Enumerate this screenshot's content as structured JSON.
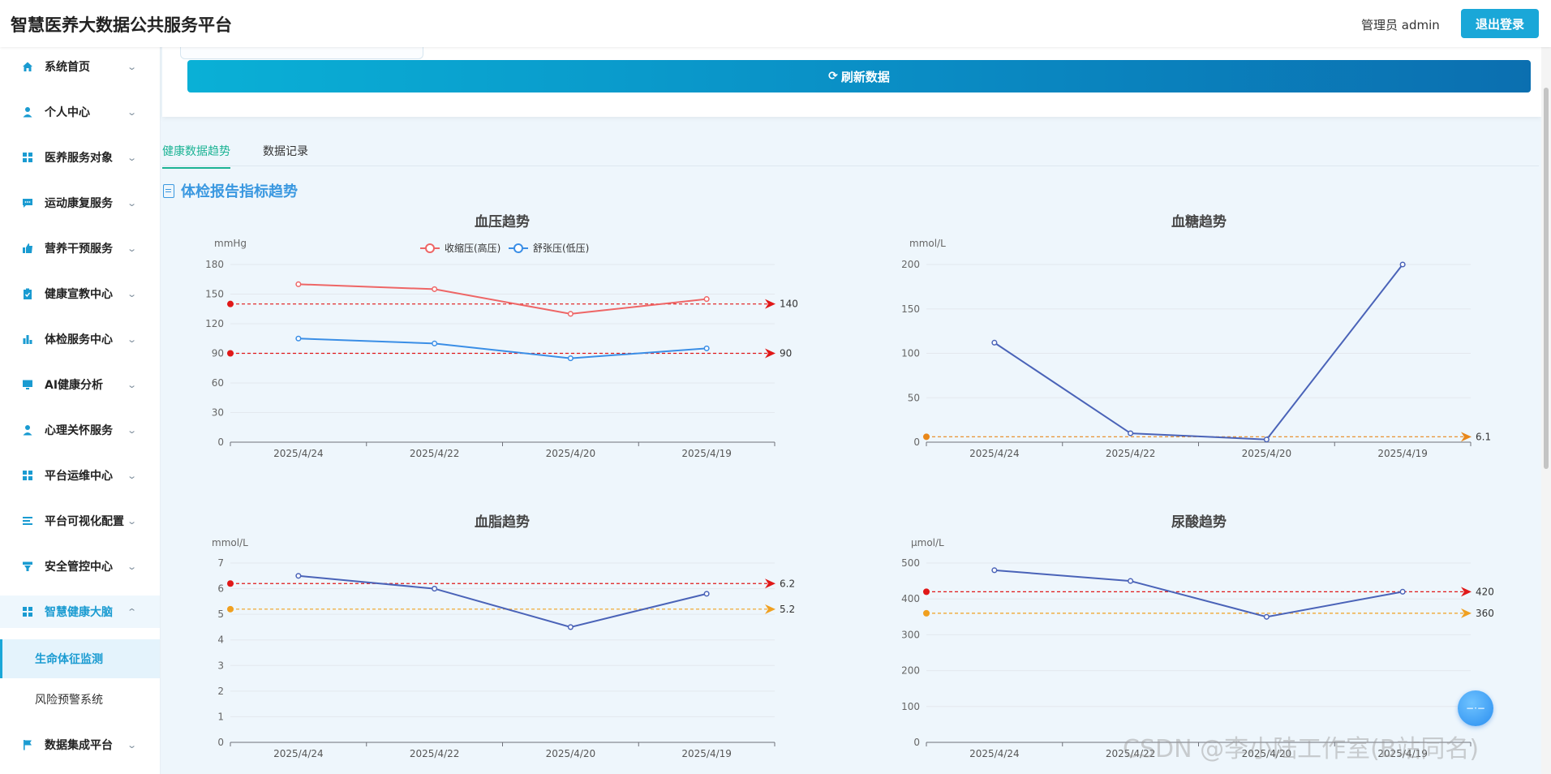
{
  "header": {
    "title": "智慧医养大数据公共服务平台",
    "user": "管理员 admin",
    "logout": "退出登录"
  },
  "sidebar": {
    "items": [
      {
        "label": "系统首页",
        "icon": "home-icon"
      },
      {
        "label": "个人中心",
        "icon": "user-icon"
      },
      {
        "label": "医养服务对象",
        "icon": "grid-icon"
      },
      {
        "label": "运动康复服务",
        "icon": "chat-icon"
      },
      {
        "label": "营养干预服务",
        "icon": "thumbs-up-icon"
      },
      {
        "label": "健康宣教中心",
        "icon": "clipboard-icon"
      },
      {
        "label": "体检服务中心",
        "icon": "bar-chart-icon"
      },
      {
        "label": "AI健康分析",
        "icon": "monitor-icon"
      },
      {
        "label": "心理关怀服务",
        "icon": "user-icon"
      },
      {
        "label": "平台运维中心",
        "icon": "grid-icon"
      },
      {
        "label": "平台可视化配置",
        "icon": "list-icon"
      },
      {
        "label": "安全管控中心",
        "icon": "funnel-icon"
      },
      {
        "label": "智慧健康大脑",
        "icon": "grid-icon"
      }
    ],
    "subitems": [
      "生命体征监测",
      "风险预警系统"
    ],
    "last_item": {
      "label": "数据集成平台",
      "icon": "flag-icon"
    }
  },
  "toolbar": {
    "refresh": "刷新数据"
  },
  "tabs": [
    "健康数据趋势",
    "数据记录"
  ],
  "section_title": "体检报告指标趋势",
  "chart_data": [
    {
      "type": "line",
      "title": "血压趋势",
      "ylabel": "mmHg",
      "categories": [
        "2025/4/24",
        "2025/4/22",
        "2025/4/20",
        "2025/4/19"
      ],
      "ylim": [
        0,
        180
      ],
      "yticks": [
        0,
        30,
        60,
        90,
        120,
        150,
        180
      ],
      "series": [
        {
          "name": "收缩压(高压)",
          "values": [
            160,
            155,
            130,
            145
          ],
          "color": "#ee6666"
        },
        {
          "name": "舒张压(低压)",
          "values": [
            105,
            100,
            85,
            95
          ],
          "color": "#3a8ee6"
        }
      ],
      "reference_lines": [
        {
          "value": 140,
          "label": "140",
          "color": "#e01818"
        },
        {
          "value": 90,
          "label": "90",
          "color": "#e01818"
        }
      ],
      "legend": "top-center"
    },
    {
      "type": "line",
      "title": "血糖趋势",
      "ylabel": "mmol/L",
      "categories": [
        "2025/4/24",
        "2025/4/22",
        "2025/4/20",
        "2025/4/19"
      ],
      "ylim": [
        0,
        200
      ],
      "yticks": [
        0,
        50,
        100,
        150,
        200
      ],
      "series": [
        {
          "values": [
            112,
            10,
            3,
            200
          ],
          "color": "#4a63b8"
        }
      ],
      "reference_lines": [
        {
          "value": 6.1,
          "label": "6.1",
          "color": "#e8871a"
        }
      ]
    },
    {
      "type": "line",
      "title": "血脂趋势",
      "ylabel": "mmol/L",
      "categories": [
        "2025/4/24",
        "2025/4/22",
        "2025/4/20",
        "2025/4/19"
      ],
      "ylim": [
        0,
        7
      ],
      "yticks": [
        0,
        1,
        2,
        3,
        4,
        5,
        6,
        7
      ],
      "series": [
        {
          "values": [
            6.5,
            6.0,
            4.5,
            5.8
          ],
          "color": "#4a63b8"
        }
      ],
      "reference_lines": [
        {
          "value": 6.2,
          "label": "6.2",
          "color": "#e01818"
        },
        {
          "value": 5.2,
          "label": "5.2",
          "color": "#f0a020"
        }
      ]
    },
    {
      "type": "line",
      "title": "尿酸趋势",
      "ylabel": "μmol/L",
      "categories": [
        "2025/4/24",
        "2025/4/22",
        "2025/4/20",
        "2025/4/19"
      ],
      "ylim": [
        0,
        500
      ],
      "yticks": [
        0,
        100,
        200,
        300,
        400,
        500
      ],
      "series": [
        {
          "values": [
            480,
            450,
            350,
            420
          ],
          "color": "#4a63b8"
        }
      ],
      "reference_lines": [
        {
          "value": 420,
          "label": "420",
          "color": "#e01818"
        },
        {
          "value": 360,
          "label": "360",
          "color": "#f0a020"
        }
      ]
    }
  ],
  "watermark": "CSDN @李小陆工作室(B站同名)"
}
